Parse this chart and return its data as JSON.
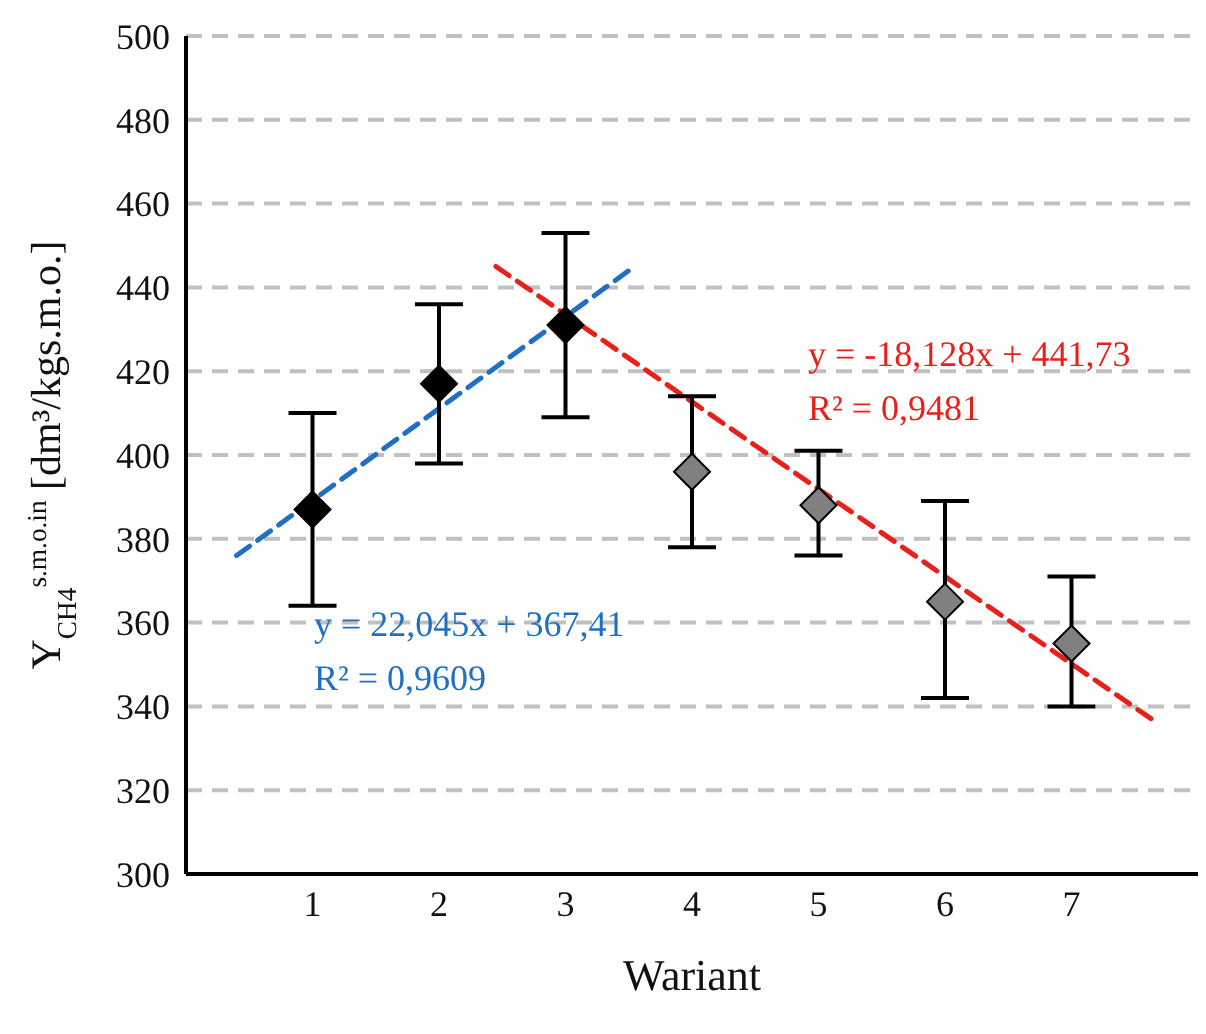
{
  "chart_data": {
    "type": "scatter",
    "xlabel": "Wariant",
    "ylabel": "Y$_{CH4}$$^{s.m.o.in}$ [dm³/kgs.m.o.]",
    "xlim": [
      0,
      8
    ],
    "xticks": [
      1,
      2,
      3,
      4,
      5,
      6,
      7
    ],
    "ylim": [
      300,
      500
    ],
    "yticks": [
      300,
      320,
      340,
      360,
      380,
      400,
      420,
      440,
      460,
      480,
      500
    ],
    "grid": "y",
    "legend": false,
    "series": [
      {
        "color": "#000000",
        "marker": "diamond",
        "x": [
          1,
          2,
          3
        ],
        "values": [
          387,
          417,
          431
        ],
        "errors": [
          [
            364,
            410
          ],
          [
            398,
            436
          ],
          [
            409,
            453
          ]
        ]
      },
      {
        "color": "#808080",
        "marker": "diamond",
        "x": [
          4,
          5,
          6,
          7
        ],
        "values": [
          396,
          388,
          365,
          355
        ],
        "errors": [
          [
            378,
            414
          ],
          [
            376,
            401
          ],
          [
            342,
            389
          ],
          [
            340,
            371
          ]
        ]
      },
      {
        "type": "line",
        "color": "#1f6fc5",
        "line_style": "dashed",
        "x": [
          0.4,
          3.5
        ],
        "values": [
          376,
          444
        ]
      },
      {
        "type": "line",
        "color": "#e8201a",
        "line_style": "dashed",
        "x": [
          2.45,
          7.68
        ],
        "values": [
          445,
          336
        ]
      }
    ],
    "annotations": [
      "y = -18,128x + 441,73",
      "R² = 0,9481",
      "y = 22,045x + 367,41",
      "R² = 0,9609"
    ]
  }
}
